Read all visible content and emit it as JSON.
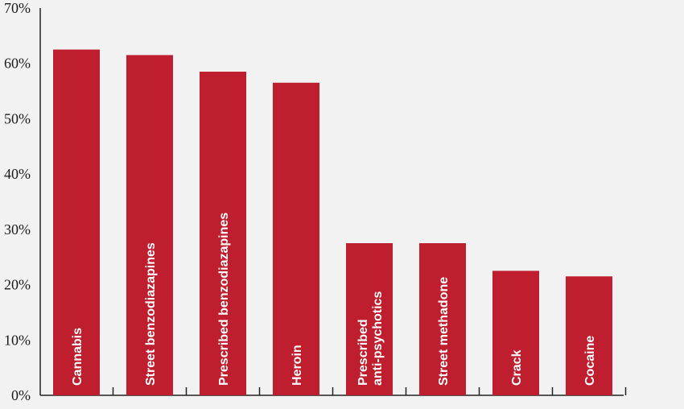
{
  "chart_data": {
    "type": "bar",
    "categories": [
      [
        "Cannabis"
      ],
      [
        "Street benzodiazapines"
      ],
      [
        "Prescribed benzodiazapines"
      ],
      [
        "Heroin"
      ],
      [
        "Prescribed",
        "anti-psychotics"
      ],
      [
        "Street methadone"
      ],
      [
        "Crack"
      ],
      [
        "Cocaine"
      ]
    ],
    "values": [
      62.5,
      61.5,
      58.5,
      56.5,
      27.5,
      27.5,
      22.5,
      21.5
    ],
    "ylim": [
      0,
      70
    ],
    "yticks": [
      "0%",
      "10%",
      "20%",
      "30%",
      "40%",
      "50%",
      "60%",
      "70%"
    ],
    "grid": false,
    "legend": "none",
    "bar_color": "#be1e2d",
    "bar_label_color": "#ffffff",
    "background": "#f2f2f2"
  }
}
